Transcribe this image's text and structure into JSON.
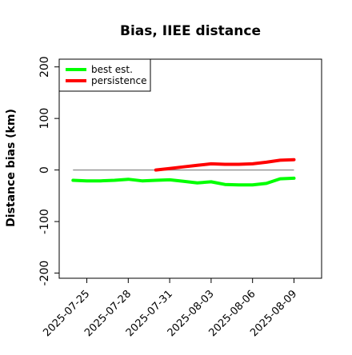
{
  "chart_data": {
    "type": "line",
    "title": "Bias, IIEE distance",
    "xlabel": "",
    "ylabel": "Distance bias (km)",
    "ylim": [
      -210,
      215
    ],
    "xlim": [
      "2025-07-23",
      "2025-08-11"
    ],
    "grid": false,
    "legend_position": "top-left",
    "yticks": [
      -200,
      -100,
      0,
      100,
      200
    ],
    "ytick_labels": [
      "-200",
      "-100",
      "0",
      "100",
      "200"
    ],
    "xticks": [
      "2025-07-25",
      "2025-07-28",
      "2025-07-31",
      "2025-08-03",
      "2025-08-06",
      "2025-08-09"
    ],
    "xtick_labels": [
      "2025-07-25",
      "2025-07-28",
      "2025-07-31",
      "2025-08-03",
      "2025-08-06",
      "2025-08-09"
    ],
    "reference_line": {
      "y": 0,
      "from": "2025-07-24",
      "to": "2025-08-09",
      "color": "#888888"
    },
    "series": [
      {
        "name": "best est.",
        "color": "#00ff00",
        "x": [
          "2025-07-24",
          "2025-07-25",
          "2025-07-26",
          "2025-07-27",
          "2025-07-28",
          "2025-07-29",
          "2025-07-30",
          "2025-07-31",
          "2025-08-01",
          "2025-08-02",
          "2025-08-03",
          "2025-08-04",
          "2025-08-05",
          "2025-08-06",
          "2025-08-07",
          "2025-08-08",
          "2025-08-09"
        ],
        "values": [
          -20,
          -21,
          -21,
          -20,
          -18,
          -21,
          -20,
          -19,
          -22,
          -25,
          -23,
          -28,
          -29,
          -29,
          -26,
          -17,
          -16
        ]
      },
      {
        "name": "persistence",
        "color": "#ff0000",
        "x": [
          "2025-07-30",
          "2025-07-31",
          "2025-08-01",
          "2025-08-02",
          "2025-08-03",
          "2025-08-04",
          "2025-08-05",
          "2025-08-06",
          "2025-08-07",
          "2025-08-08",
          "2025-08-09"
        ],
        "values": [
          0,
          3,
          6,
          9,
          12,
          11,
          11,
          12,
          15,
          19,
          20
        ]
      }
    ]
  }
}
